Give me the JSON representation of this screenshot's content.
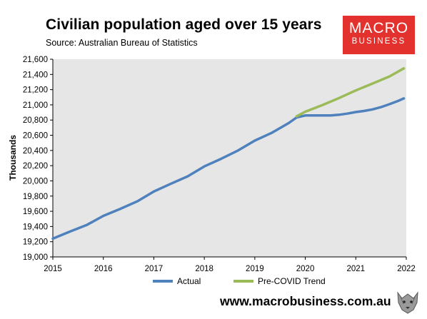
{
  "header": {
    "title": "Civilian population aged over 15 years",
    "subtitle": "Source: Australian Bureau of Statistics"
  },
  "logo": {
    "line1": "MACRO",
    "line2": "BUSINESS",
    "color": "#e3312d"
  },
  "footer": {
    "url": "www.macrobusiness.com.au"
  },
  "colors": {
    "actual": "#4f81bd",
    "trend": "#9bbb59",
    "plot_bg": "#e6e6e6"
  },
  "chart_data": {
    "type": "line",
    "title": "Civilian population aged over 15 years",
    "ylabel": "Thousands",
    "xlabel": "",
    "ylim": [
      19000,
      21600
    ],
    "xlim": [
      2015,
      2022
    ],
    "yticks": [
      "19,000",
      "19,200",
      "19,400",
      "19,600",
      "19,800",
      "20,000",
      "20,200",
      "20,400",
      "20,600",
      "20,800",
      "21,000",
      "21,200",
      "21,400",
      "21,600"
    ],
    "xticks": [
      "2015",
      "2016",
      "2017",
      "2018",
      "2019",
      "2020",
      "2021",
      "2022"
    ],
    "grid": false,
    "legend_position": "bottom",
    "series": [
      {
        "name": "Actual",
        "color": "#4f81bd",
        "x": [
          2015.0,
          2015.33,
          2015.67,
          2016.0,
          2016.33,
          2016.67,
          2017.0,
          2017.33,
          2017.67,
          2018.0,
          2018.33,
          2018.67,
          2019.0,
          2019.33,
          2019.67,
          2019.83,
          2020.0,
          2020.25,
          2020.5,
          2020.67,
          2020.83,
          2021.0,
          2021.17,
          2021.33,
          2021.5,
          2021.67,
          2021.83,
          2021.95
        ],
        "values": [
          19240,
          19330,
          19420,
          19540,
          19630,
          19730,
          19860,
          19960,
          20060,
          20190,
          20290,
          20400,
          20530,
          20630,
          20760,
          20835,
          20860,
          20860,
          20860,
          20870,
          20885,
          20905,
          20920,
          20940,
          20970,
          21010,
          21050,
          21085
        ]
      },
      {
        "name": "Pre-COVID Trend",
        "color": "#9bbb59",
        "x": [
          2019.83,
          2020.0,
          2020.33,
          2020.67,
          2021.0,
          2021.33,
          2021.67,
          2021.95
        ],
        "values": [
          20850,
          20910,
          20995,
          21090,
          21190,
          21280,
          21375,
          21480
        ]
      }
    ]
  }
}
